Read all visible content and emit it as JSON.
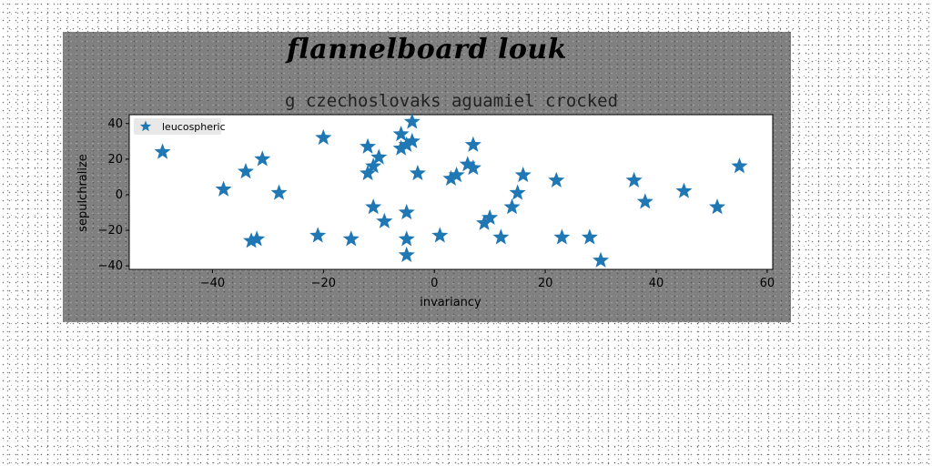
{
  "figure": {
    "suptitle": "flannelboard louk"
  },
  "chart_data": {
    "type": "scatter",
    "title": "g czechoslovaks aguamiel crocked",
    "xlabel": "invariancy",
    "ylabel": "sepulchralize",
    "xlim": [
      -55,
      61
    ],
    "ylim": [
      -42,
      45
    ],
    "xticks": [
      -40,
      -20,
      0,
      20,
      40,
      60
    ],
    "yticks": [
      -40,
      -20,
      0,
      20,
      40
    ],
    "marker": "star",
    "color": "#1f77b4",
    "grid": false,
    "legend_position": "top-left",
    "series": [
      {
        "name": "leucospheric",
        "points": [
          [
            -49,
            24
          ],
          [
            -38,
            3
          ],
          [
            -34,
            13
          ],
          [
            -31,
            20
          ],
          [
            -28,
            1
          ],
          [
            -32,
            -25
          ],
          [
            -33,
            -26
          ],
          [
            -21,
            -23
          ],
          [
            -20,
            32
          ],
          [
            -15,
            -25
          ],
          [
            -12,
            27
          ],
          [
            -12,
            12
          ],
          [
            -11,
            16
          ],
          [
            -11,
            -7
          ],
          [
            -10,
            21
          ],
          [
            -9,
            -15
          ],
          [
            -6,
            26
          ],
          [
            -6,
            34
          ],
          [
            -5,
            28
          ],
          [
            -5,
            -10
          ],
          [
            -5,
            -25
          ],
          [
            -5,
            -34
          ],
          [
            -4,
            41
          ],
          [
            -4,
            30
          ],
          [
            -3,
            12
          ],
          [
            1,
            -23
          ],
          [
            3,
            9
          ],
          [
            4,
            11
          ],
          [
            6,
            17
          ],
          [
            7,
            28
          ],
          [
            7,
            15
          ],
          [
            9,
            -16
          ],
          [
            10,
            -13
          ],
          [
            12,
            -24
          ],
          [
            14,
            -7
          ],
          [
            15,
            1
          ],
          [
            16,
            11
          ],
          [
            22,
            8
          ],
          [
            23,
            -24
          ],
          [
            28,
            -24
          ],
          [
            30,
            -37
          ],
          [
            36,
            8
          ],
          [
            38,
            -4
          ],
          [
            45,
            2
          ],
          [
            51,
            -7
          ],
          [
            55,
            16
          ]
        ]
      }
    ]
  }
}
